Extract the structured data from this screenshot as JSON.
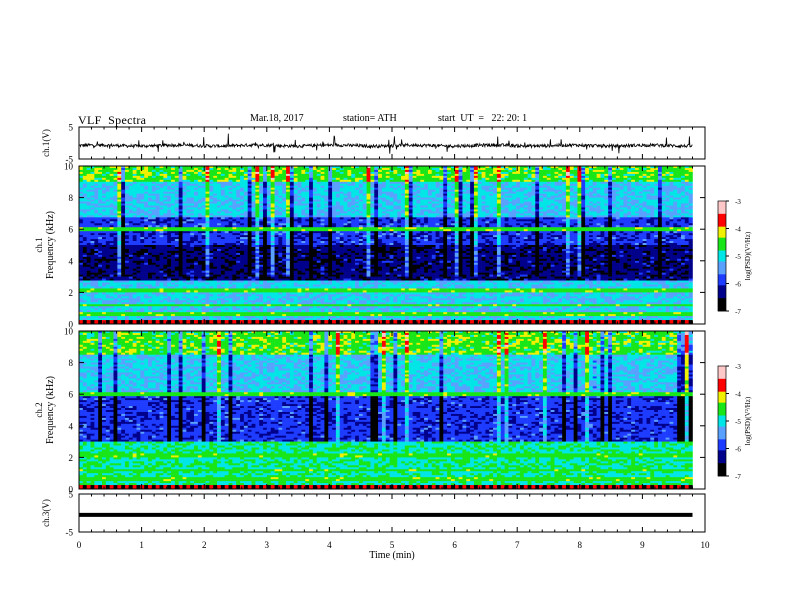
{
  "header": {
    "title": "VLF  Spectra",
    "date": "Mar.18, 2017",
    "station": "station= ATH",
    "start_ut": "start  UT  =   22: 20: 1"
  },
  "colors": {
    "black": "#000000",
    "navy": "#00008b",
    "blue": "#1e3cff",
    "lightblue": "#5aa0ff",
    "cyan": "#00e6e6",
    "green": "#19e619",
    "yellow": "#f0f000",
    "red": "#ff0000",
    "pink": "#ffc8c8"
  },
  "chart_data": [
    {
      "type": "line",
      "panel": "ch1",
      "ylabel": "ch.1(V)",
      "ylim": [
        -5,
        5
      ],
      "yticks": [
        "5",
        "-5"
      ],
      "xlim": [
        0,
        10
      ],
      "series": [
        {
          "baseline": -0.8,
          "noise": 0.5
        }
      ]
    },
    {
      "type": "heatmap",
      "panel": "ch1_spectrogram",
      "ylabel_top": "ch.1",
      "ylabel": "Frequency  (kHz)",
      "ylim": [
        0,
        10
      ],
      "yticks": [
        "0",
        "2",
        "4",
        "6",
        "8",
        "10"
      ],
      "xlim": [
        0,
        10
      ],
      "colorbar": {
        "label": "log(PSD)(V²/Hz)",
        "range": [
          -7,
          -3
        ],
        "ticks": [
          "-3",
          "-4",
          "-5",
          "-6",
          "-7"
        ]
      },
      "bands": [
        {
          "f_low": 9.0,
          "f_high": 10.0,
          "level": "high"
        },
        {
          "f_low": 6.8,
          "f_high": 9.0,
          "level": "medium"
        },
        {
          "f_low": 5.0,
          "f_high": 6.8,
          "level": "low"
        },
        {
          "f_low": 2.8,
          "f_high": 5.0,
          "level": "very-low"
        },
        {
          "f_low": 0.3,
          "f_high": 2.8,
          "level": "medium"
        }
      ]
    },
    {
      "type": "heatmap",
      "panel": "ch2_spectrogram",
      "ylabel_top": "ch.2",
      "ylabel": "Frequency  (kHz)",
      "ylim": [
        0,
        10
      ],
      "yticks": [
        "0",
        "2",
        "4",
        "6",
        "8",
        "10"
      ],
      "xlim": [
        0,
        10
      ],
      "colorbar": {
        "label": "log(PSD)(V²/Hz)",
        "range": [
          -7,
          -3
        ],
        "ticks": [
          "-3",
          "-4",
          "-5",
          "-6",
          "-7"
        ]
      },
      "bands": [
        {
          "f_low": 8.5,
          "f_high": 10.0,
          "level": "high"
        },
        {
          "f_low": 6.0,
          "f_high": 8.5,
          "level": "medium"
        },
        {
          "f_low": 3.0,
          "f_high": 6.0,
          "level": "low"
        },
        {
          "f_low": 0.3,
          "f_high": 3.0,
          "level": "medium-high"
        }
      ]
    },
    {
      "type": "line",
      "panel": "ch3",
      "ylabel": "ch.3(V)",
      "ylim": [
        -5,
        5
      ],
      "yticks": [
        "5",
        "-5"
      ],
      "xlim": [
        0,
        10
      ],
      "series": [
        {
          "baseline": -0.5,
          "noise": 0.05
        }
      ]
    }
  ],
  "xaxis": {
    "label": "Time  (min)",
    "ticks": [
      "0",
      "1",
      "2",
      "3",
      "4",
      "5",
      "6",
      "7",
      "8",
      "9",
      "10"
    ],
    "data_end": 9.8
  }
}
